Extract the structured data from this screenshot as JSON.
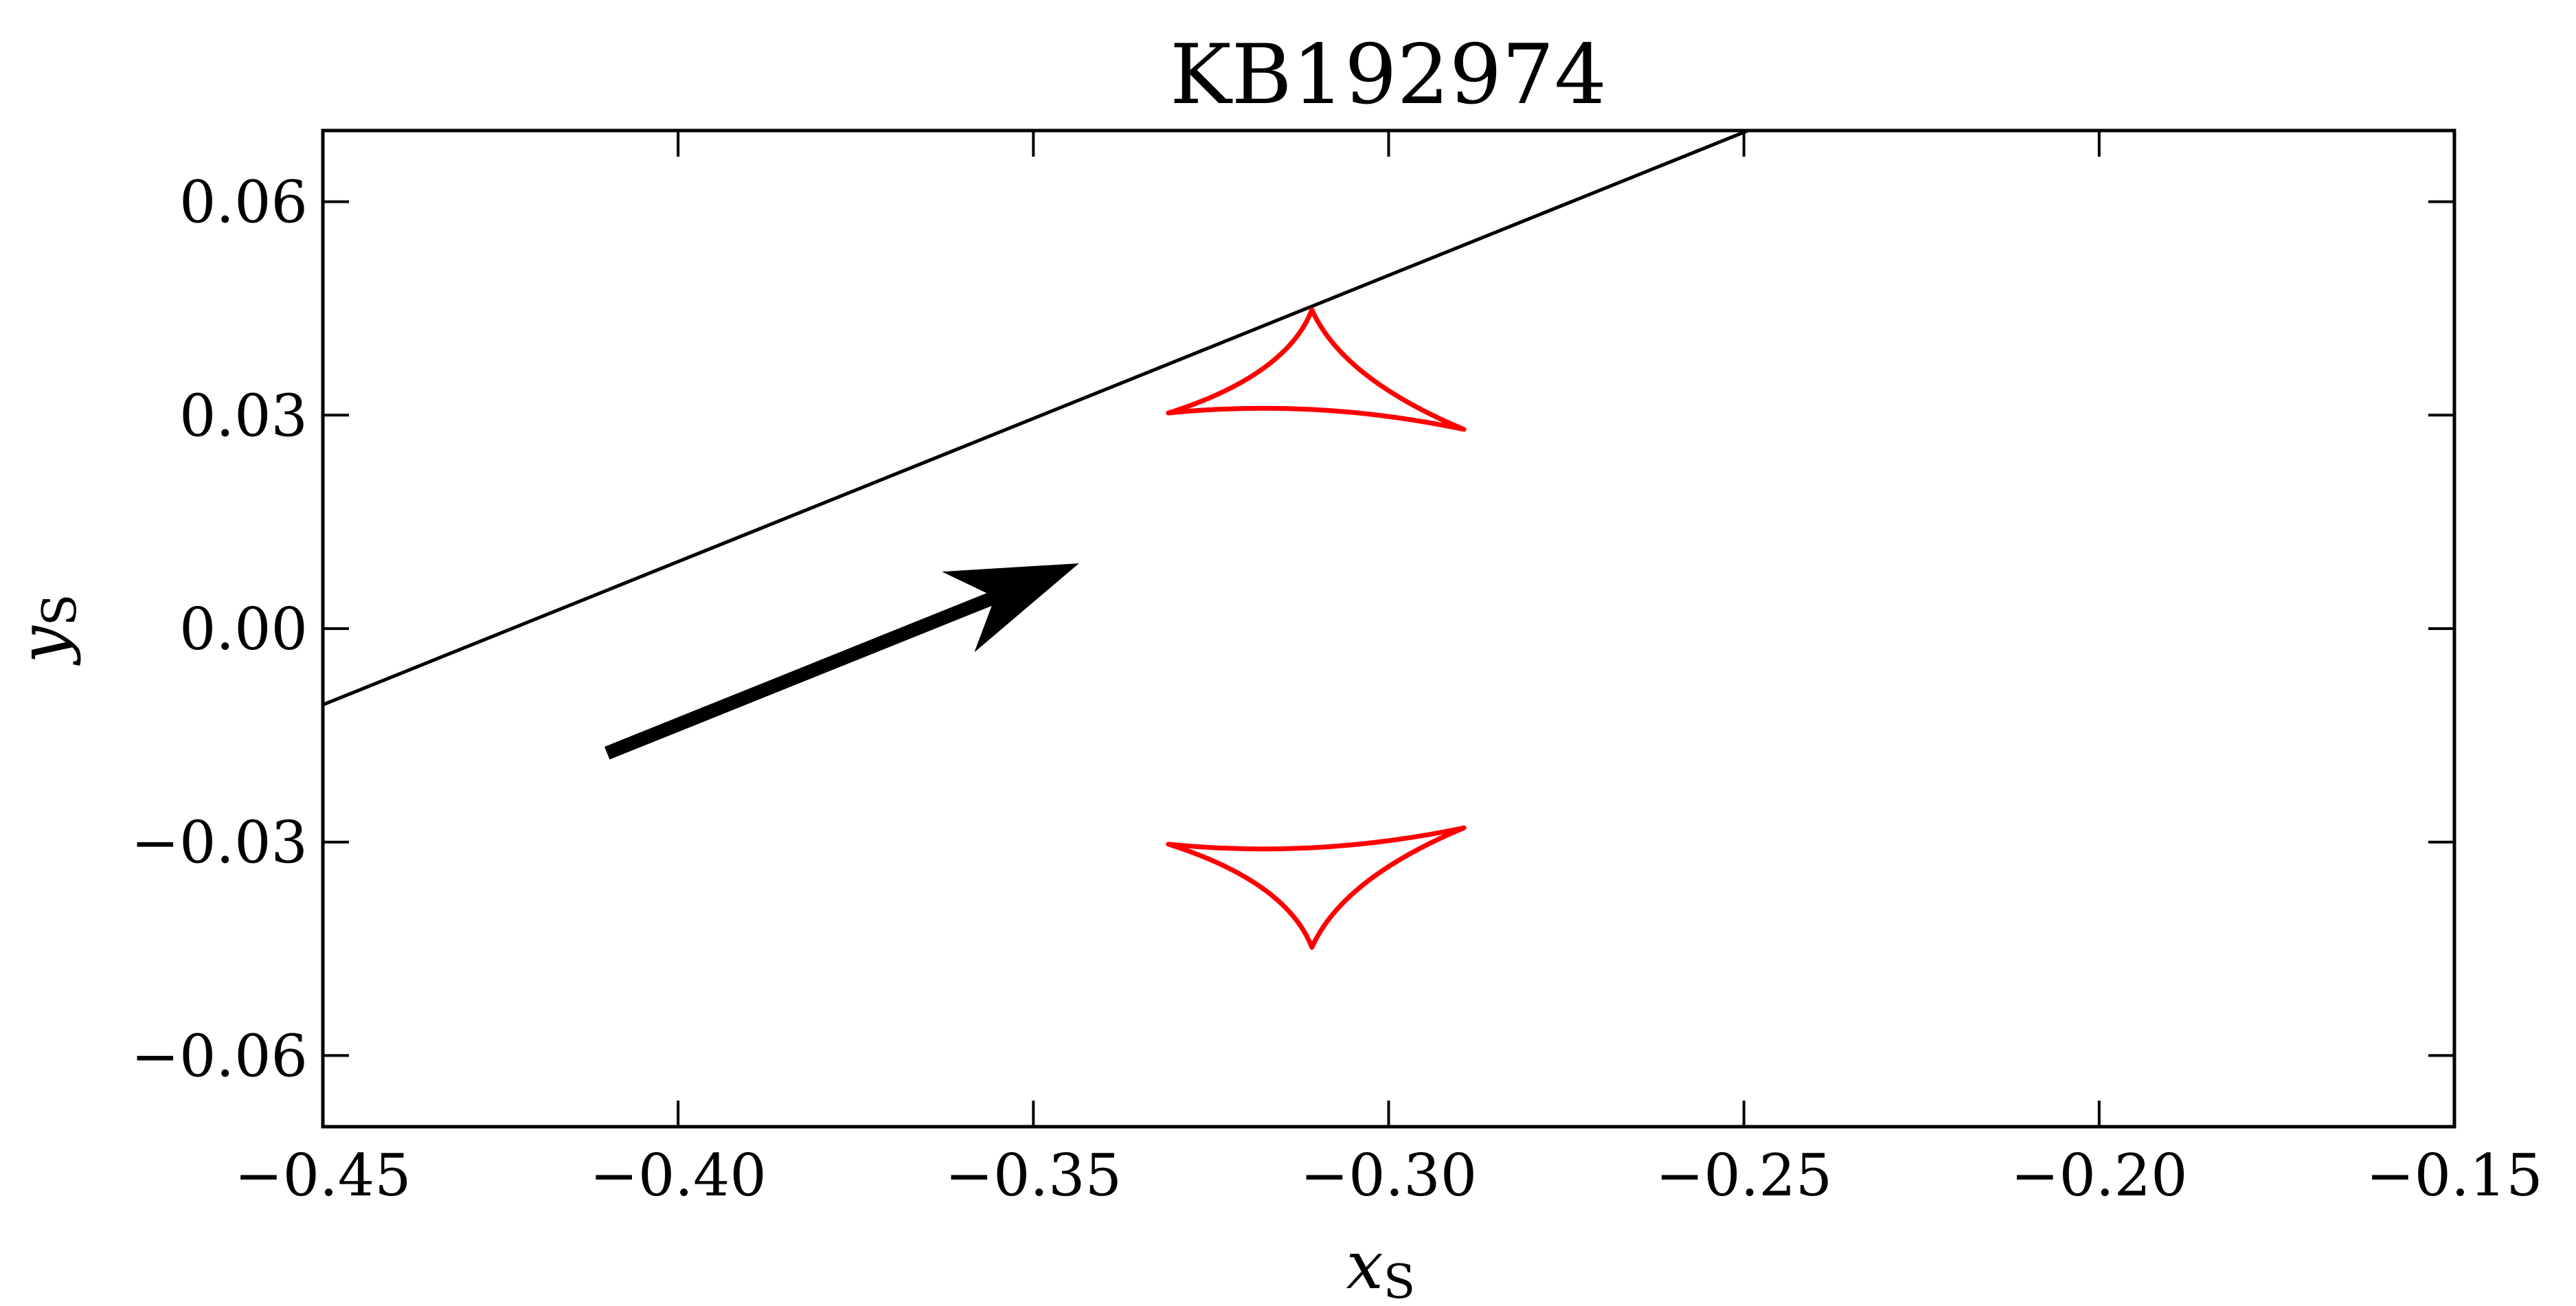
{
  "chart_data": {
    "type": "line",
    "title": "KB192974",
    "xlabel": "x",
    "xlabel_sub": "S",
    "ylabel": "y",
    "ylabel_sub": "S",
    "xlim": [
      -0.45,
      -0.15
    ],
    "ylim": [
      -0.07,
      0.07
    ],
    "x_ticks": [
      -0.45,
      -0.4,
      -0.35,
      -0.3,
      -0.25,
      -0.2,
      -0.15
    ],
    "x_tick_labels": [
      "−0.45",
      "−0.40",
      "−0.35",
      "−0.30",
      "−0.25",
      "−0.20",
      "−0.15"
    ],
    "y_ticks": [
      -0.06,
      -0.03,
      0.0,
      0.03,
      0.06
    ],
    "y_tick_labels": [
      "−0.06",
      "−0.03",
      "0.00",
      "0.03",
      "0.06"
    ],
    "grid": false,
    "trajectory": {
      "color": "#000000",
      "points": [
        [
          -0.45,
          -0.0107
        ],
        [
          -0.2494,
          0.07
        ]
      ]
    },
    "direction_arrow": {
      "color": "#000000",
      "from": [
        -0.41,
        -0.0175
      ],
      "to": [
        -0.344,
        0.009
      ]
    },
    "caustics": {
      "color": "#ff0000",
      "upper": {
        "cusps": [
          [
            -0.3108,
            0.0448
          ],
          [
            -0.2894,
            0.028
          ],
          [
            -0.331,
            0.0303
          ]
        ]
      },
      "lower": {
        "cusps": [
          [
            -0.3108,
            -0.0448
          ],
          [
            -0.2894,
            -0.028
          ],
          [
            -0.331,
            -0.0303
          ]
        ]
      }
    }
  }
}
